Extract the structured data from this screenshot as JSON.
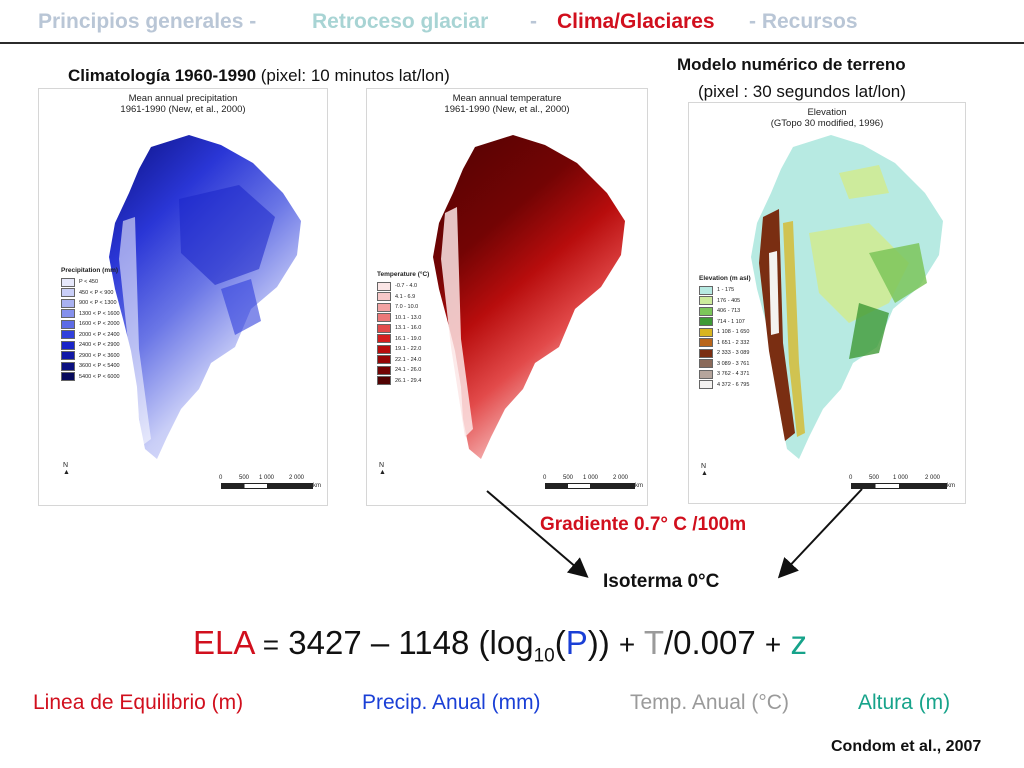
{
  "nav": {
    "part1": "Principios generales - ",
    "part2": "Retroceso glaciar",
    "part3": "  - ",
    "active": "Clima/Glaciares",
    "part4": " - Recursos"
  },
  "headings": {
    "climatology_bold": "Climatología 1960-1990",
    "climatology_rest": " (pixel: 10 minutos lat/lon)",
    "dem_line1": "Modelo numérico de terreno",
    "dem_line2": "(pixel : 30 segundos lat/lon)"
  },
  "maps": [
    {
      "title_line1": "Mean annual precipitation",
      "title_line2": "1961-1990 (New, et al., 2000)",
      "legend_title": "Precipitation (mm)",
      "legend": [
        {
          "label": "P < 450",
          "color": "#e6e8fb"
        },
        {
          "label": "450 < P < 900",
          "color": "#c9cef7"
        },
        {
          "label": "900 < P < 1300",
          "color": "#a9b1f1"
        },
        {
          "label": "1300 < P < 1600",
          "color": "#8590ec"
        },
        {
          "label": "1600 < P < 2000",
          "color": "#5d6be6"
        },
        {
          "label": "2000 < P < 2400",
          "color": "#3140dc"
        },
        {
          "label": "2400 < P < 2900",
          "color": "#1a24c8"
        },
        {
          "label": "2900 < P < 3600",
          "color": "#1118a6"
        },
        {
          "label": "3600 < P < 5400",
          "color": "#0b1080"
        },
        {
          "label": "5400 < P < 6000",
          "color": "#070a5c"
        }
      ],
      "north": "N",
      "scale": [
        "0",
        "500",
        "1 000",
        "2 000"
      ],
      "scale_unit": "km"
    },
    {
      "title_line1": "Mean annual temperature",
      "title_line2": "1961-1990 (New, et al., 2000)",
      "legend_title": "Temperature (°C)",
      "legend": [
        {
          "label": "-0.7 - 4.0",
          "color": "#fbe6e6"
        },
        {
          "label": "4.1 - 6.9",
          "color": "#f7c8c8"
        },
        {
          "label": "7.0 - 10.0",
          "color": "#f2a3a3"
        },
        {
          "label": "10.1 - 13.0",
          "color": "#ec7878"
        },
        {
          "label": "13.1 - 16.0",
          "color": "#e24a4a"
        },
        {
          "label": "16.1 - 19.0",
          "color": "#d41e1e"
        },
        {
          "label": "19.1 - 22.0",
          "color": "#b80d0d"
        },
        {
          "label": "22.1 - 24.0",
          "color": "#950707"
        },
        {
          "label": "24.1 - 26.0",
          "color": "#730404"
        },
        {
          "label": "26.1 - 29.4",
          "color": "#520202"
        }
      ],
      "north": "N",
      "scale": [
        "0",
        "500",
        "1 000",
        "2 000"
      ],
      "scale_unit": "km"
    },
    {
      "title_line1": "Elevation",
      "title_line2": "(GTopo 30 modified, 1996)",
      "legend_title": "Elevation (m asl)",
      "legend": [
        {
          "label": "1 - 175",
          "color": "#b7eae2"
        },
        {
          "label": "176 - 405",
          "color": "#cdeb9c"
        },
        {
          "label": "406 - 713",
          "color": "#7cc65a"
        },
        {
          "label": "714 - 1 107",
          "color": "#3f9a36"
        },
        {
          "label": "1 108 - 1 650",
          "color": "#d8b520"
        },
        {
          "label": "1 651 - 2 332",
          "color": "#b8651a"
        },
        {
          "label": "2 333 - 3 089",
          "color": "#7a2e12"
        },
        {
          "label": "3 089 - 3 761",
          "color": "#8a6a5a"
        },
        {
          "label": "3 762 - 4 371",
          "color": "#b5a59c"
        },
        {
          "label": "4 372 - 6 795",
          "color": "#f4f2f0"
        }
      ],
      "north": "N",
      "scale": [
        "0",
        "500",
        "1 000",
        "2 000"
      ],
      "scale_unit": "km"
    }
  ],
  "gradient_label": "Gradiente 0.7° C /100m",
  "isotherm_label": "Isoterma 0°C",
  "equation": {
    "ela": "ELA",
    "eq_sign": "=",
    "constant": "3427",
    "minus": "–",
    "coef": "1148 (log",
    "log_base": "10",
    "open": "(",
    "p": "P",
    "close": "))",
    "plus1": "+",
    "t": "T",
    "t_div": "/0.007",
    "plus2": "+",
    "z": "z"
  },
  "legend_items": {
    "ela": "Linea de Equilibrio (m)",
    "p": "Precip. Anual (mm)",
    "t": "Temp. Anual (°C)",
    "z": "Altura (m)"
  },
  "citation": "Condom et al., 2007",
  "colors": {
    "accent_red": "#d10f1d",
    "precip_blue": "#1a3fd6",
    "temp_gray": "#9a9a9a",
    "altitude_teal": "#16a38a"
  }
}
